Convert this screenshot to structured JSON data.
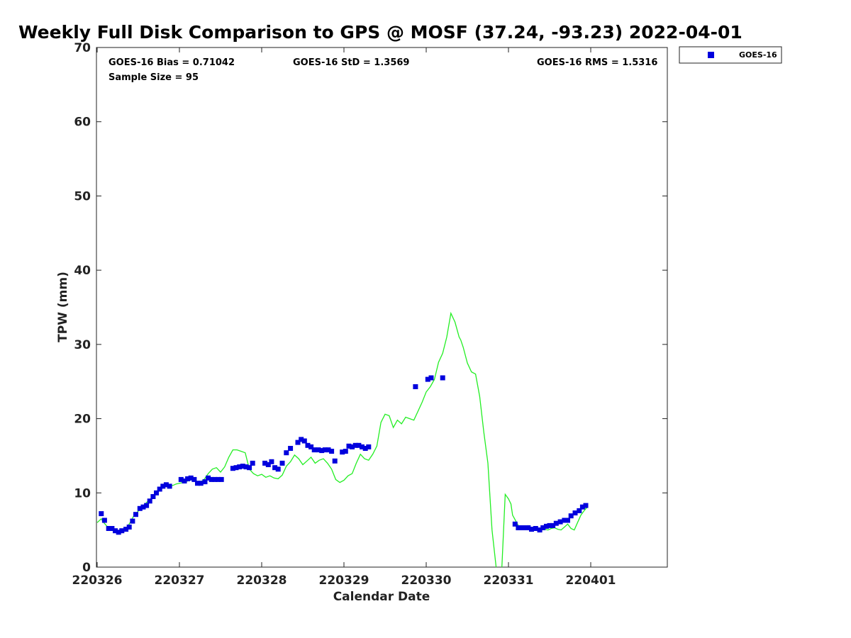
{
  "chart_data": {
    "type": "scatter",
    "title": "Weekly Full Disk Comparison to GPS @ MOSF (37.24, -93.23) 2022-04-01",
    "xlabel": "Calendar Date",
    "ylabel": "TPW (mm)",
    "x_ticks": [
      "220326",
      "220327",
      "220328",
      "220329",
      "220330",
      "220331",
      "220401"
    ],
    "ylim": [
      0,
      70
    ],
    "y_ticks": [
      0,
      10,
      20,
      30,
      40,
      50,
      60,
      70
    ],
    "grid": false,
    "legend_position": "top-right outside",
    "stats": {
      "bias": "GOES-16 Bias = 0.71042",
      "std": "GOES-16 StD = 1.3569",
      "rms": "GOES-16 RMS = 1.5316",
      "sample": "Sample Size = 95"
    },
    "series": [
      {
        "name": "GOES-16",
        "kind": "scatter",
        "color": "#0000dd",
        "marker": "square",
        "x": [
          0.05,
          0.09,
          0.14,
          0.18,
          0.22,
          0.26,
          0.3,
          0.35,
          0.39,
          0.43,
          0.47,
          0.52,
          0.56,
          0.6,
          0.64,
          0.68,
          0.72,
          0.76,
          0.8,
          0.84,
          0.88,
          0.92,
          0.96,
          1.02,
          1.06,
          1.1,
          1.14,
          1.18,
          1.22,
          1.26,
          1.31,
          1.35,
          1.39,
          1.43,
          1.47,
          1.51,
          1.65,
          1.69,
          1.73,
          1.77,
          1.81,
          1.85,
          1.89,
          2.04,
          2.08,
          2.12,
          2.16,
          2.2,
          2.25,
          2.3,
          2.35,
          2.44,
          2.48,
          2.52,
          2.56,
          2.6,
          2.64,
          2.69,
          2.73,
          2.77,
          2.81,
          2.85,
          2.89,
          2.98,
          3.02,
          3.06,
          3.1,
          3.14,
          3.18,
          3.22,
          3.26,
          3.3,
          3.34,
          3.87,
          4.02,
          4.06,
          4.2,
          5.08,
          5.12,
          5.16,
          5.2,
          5.24,
          5.28,
          5.33,
          5.38,
          5.42,
          5.46,
          5.5,
          5.54,
          5.58,
          5.63,
          5.68,
          5.72,
          5.76,
          5.81,
          5.86,
          5.9,
          5.94
        ],
        "y": [
          7.2,
          6.3,
          5.2,
          5.2,
          4.9,
          4.7,
          4.9,
          5.1,
          5.4,
          6.2,
          7.1,
          7.9,
          8.1,
          8.3,
          8.9,
          9.5,
          10.0,
          10.5,
          10.9,
          11.1,
          10.9,
          null,
          null,
          11.8,
          11.6,
          11.9,
          12.0,
          11.8,
          11.3,
          11.3,
          11.5,
          12.0,
          11.8,
          11.8,
          11.8,
          11.8,
          13.3,
          13.4,
          13.5,
          13.6,
          13.5,
          13.4,
          14.0,
          14.0,
          13.8,
          14.2,
          13.4,
          13.2,
          14.0,
          15.4,
          16.0,
          16.8,
          17.2,
          17.0,
          16.4,
          16.2,
          15.8,
          15.8,
          15.7,
          15.8,
          15.8,
          15.6,
          14.3,
          15.5,
          15.6,
          16.3,
          16.2,
          16.4,
          16.4,
          16.2,
          16.0,
          16.2,
          null,
          24.3,
          25.3,
          25.5,
          25.5,
          5.8,
          5.3,
          5.3,
          5.3,
          5.3,
          5.1,
          5.2,
          5.0,
          5.3,
          5.5,
          5.6,
          5.6,
          5.9,
          6.1,
          6.3,
          6.3,
          6.9,
          7.3,
          7.6,
          8.1,
          8.3
        ]
      },
      {
        "name": "",
        "kind": "line",
        "color": "#22ee22",
        "x": [
          0.0,
          0.05,
          0.08,
          0.12,
          0.16,
          0.2,
          0.24,
          0.28,
          0.32,
          0.36,
          0.4,
          0.44,
          0.48,
          0.52,
          0.56,
          0.6,
          0.64,
          0.68,
          0.72,
          0.76,
          0.8,
          0.84,
          0.88,
          0.92,
          0.96,
          1.0,
          1.05,
          1.1,
          1.15,
          1.2,
          1.25,
          1.3,
          1.35,
          1.4,
          1.45,
          1.5,
          1.55,
          1.6,
          1.65,
          1.7,
          1.75,
          1.8,
          1.85,
          1.9,
          1.95,
          2.0,
          2.05,
          2.1,
          2.15,
          2.2,
          2.25,
          2.3,
          2.35,
          2.4,
          2.45,
          2.5,
          2.55,
          2.6,
          2.65,
          2.7,
          2.75,
          2.8,
          2.85,
          2.9,
          2.95,
          3.0,
          3.05,
          3.1,
          3.15,
          3.2,
          3.25,
          3.3,
          3.35,
          3.4,
          3.45,
          3.5,
          3.55,
          3.6,
          3.65,
          3.7,
          3.75,
          3.8,
          3.85,
          3.9,
          3.95,
          4.0,
          4.05,
          4.1,
          4.15,
          4.2,
          4.25,
          4.3,
          4.35,
          4.4,
          4.42,
          4.45,
          4.5,
          4.55,
          4.6,
          4.65,
          4.7,
          4.75,
          4.8,
          4.85,
          4.88,
          4.92,
          4.96,
          5.0,
          5.03,
          5.05,
          5.12,
          5.16,
          5.2,
          5.24,
          5.28,
          5.32,
          5.36,
          5.4,
          5.44,
          5.48,
          5.52,
          5.56,
          5.6,
          5.64,
          5.68,
          5.72,
          5.76,
          5.8,
          5.84,
          5.88,
          5.92,
          5.95
        ],
        "y": [
          6.0,
          6.5,
          6.0,
          5.5,
          5.2,
          5.0,
          4.8,
          4.7,
          4.9,
          5.3,
          6.0,
          6.8,
          7.3,
          7.8,
          8.2,
          8.7,
          9.1,
          9.5,
          10.0,
          10.4,
          10.7,
          10.9,
          10.9,
          11.0,
          11.2,
          11.3,
          11.4,
          11.6,
          11.8,
          11.6,
          11.4,
          11.8,
          12.6,
          13.2,
          13.4,
          12.8,
          13.5,
          14.8,
          15.8,
          15.8,
          15.6,
          15.4,
          13.2,
          12.6,
          12.3,
          12.5,
          12.1,
          12.3,
          12.0,
          11.9,
          12.4,
          13.6,
          14.2,
          15.1,
          14.6,
          13.8,
          14.3,
          14.8,
          14.0,
          14.4,
          14.6,
          14.0,
          13.2,
          11.8,
          11.4,
          11.7,
          12.3,
          12.6,
          14.0,
          15.2,
          14.6,
          14.4,
          15.2,
          16.3,
          19.5,
          20.6,
          20.4,
          18.8,
          19.8,
          19.3,
          20.2,
          20.0,
          19.8,
          21.0,
          22.2,
          23.6,
          24.3,
          25.3,
          27.6,
          28.8,
          31.0,
          34.2,
          33.0,
          31.0,
          30.6,
          29.6,
          27.5,
          26.3,
          26.0,
          23.0,
          18.2,
          14.0,
          5.0,
          0.0,
          null,
          0.0,
          9.8,
          9.2,
          8.5,
          7.0,
          5.6,
          5.3,
          5.5,
          5.6,
          5.3,
          5.2,
          5.0,
          5.2,
          5.1,
          5.0,
          5.2,
          5.3,
          5.1,
          5.0,
          5.4,
          5.8,
          5.2,
          5.0,
          6.0,
          7.0,
          7.6,
          8.0
        ]
      }
    ]
  }
}
